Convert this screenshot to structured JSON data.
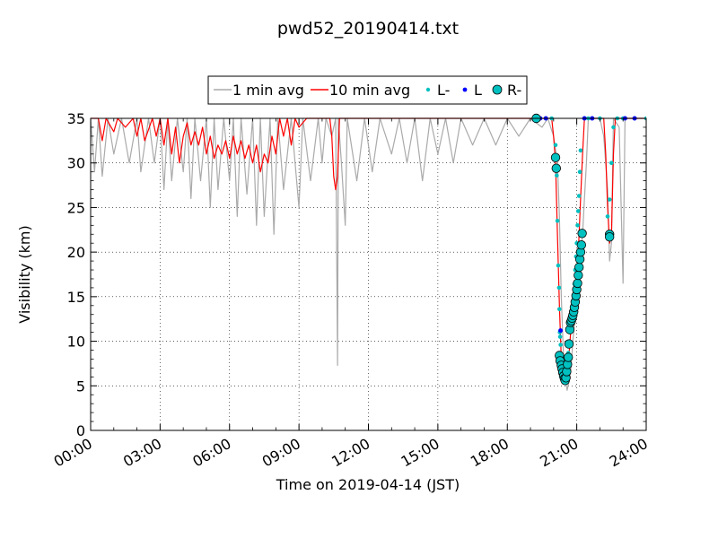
{
  "chart_data": {
    "type": "line",
    "title": "pwd52_20190414.txt",
    "xlabel": "Time on 2019-04-14 (JST)",
    "ylabel": "Visibility (km)",
    "xlim": [
      "00:00",
      "24:00"
    ],
    "ylim": [
      0,
      35
    ],
    "x_ticks": [
      "00:00",
      "03:00",
      "06:00",
      "09:00",
      "12:00",
      "15:00",
      "18:00",
      "21:00",
      "24:00"
    ],
    "y_ticks": [
      0,
      5,
      10,
      15,
      20,
      25,
      30,
      35
    ],
    "grid": true,
    "legend_position": "top-center",
    "legend": [
      "1 min avg",
      "10 min avg",
      "L-",
      "L",
      "R-"
    ],
    "series": [
      {
        "name": "1 min avg",
        "color": "#aaaaaa",
        "points": [
          [
            "00:00",
            35
          ],
          [
            "00:10",
            29
          ],
          [
            "00:20",
            35
          ],
          [
            "00:30",
            28.5
          ],
          [
            "00:45",
            35
          ],
          [
            "01:00",
            31
          ],
          [
            "01:20",
            35
          ],
          [
            "01:40",
            30
          ],
          [
            "02:00",
            35
          ],
          [
            "02:10",
            29
          ],
          [
            "02:30",
            35
          ],
          [
            "02:45",
            30
          ],
          [
            "03:00",
            35
          ],
          [
            "03:10",
            27
          ],
          [
            "03:20",
            35
          ],
          [
            "03:30",
            28
          ],
          [
            "03:45",
            35
          ],
          [
            "04:00",
            29
          ],
          [
            "04:10",
            35
          ],
          [
            "04:20",
            26
          ],
          [
            "04:30",
            35
          ],
          [
            "04:45",
            28
          ],
          [
            "05:00",
            35
          ],
          [
            "05:10",
            25
          ],
          [
            "05:20",
            35
          ],
          [
            "05:30",
            27
          ],
          [
            "05:45",
            35
          ],
          [
            "06:00",
            28
          ],
          [
            "06:10",
            35
          ],
          [
            "06:20",
            24
          ],
          [
            "06:30",
            35
          ],
          [
            "06:45",
            26.5
          ],
          [
            "07:00",
            35
          ],
          [
            "07:10",
            23
          ],
          [
            "07:20",
            35
          ],
          [
            "07:30",
            24
          ],
          [
            "07:45",
            35
          ],
          [
            "07:55",
            22
          ],
          [
            "08:05",
            35
          ],
          [
            "08:20",
            27
          ],
          [
            "08:40",
            35
          ],
          [
            "09:00",
            25
          ],
          [
            "09:10",
            35
          ],
          [
            "09:30",
            28
          ],
          [
            "09:50",
            35
          ],
          [
            "10:00",
            30
          ],
          [
            "10:10",
            35
          ],
          [
            "10:25",
            33
          ],
          [
            "10:35",
            35
          ],
          [
            "10:40",
            7.3
          ],
          [
            "10:42",
            35
          ],
          [
            "10:50",
            30
          ],
          [
            "11:00",
            23
          ],
          [
            "11:05",
            35
          ],
          [
            "11:30",
            28
          ],
          [
            "11:50",
            35
          ],
          [
            "12:10",
            29
          ],
          [
            "12:30",
            35
          ],
          [
            "13:00",
            31
          ],
          [
            "13:20",
            35
          ],
          [
            "13:40",
            30
          ],
          [
            "14:00",
            35
          ],
          [
            "14:20",
            28
          ],
          [
            "14:40",
            35
          ],
          [
            "15:00",
            31
          ],
          [
            "15:20",
            35
          ],
          [
            "15:40",
            30
          ],
          [
            "16:00",
            35
          ],
          [
            "16:30",
            32
          ],
          [
            "17:00",
            35
          ],
          [
            "17:30",
            32
          ],
          [
            "18:00",
            35
          ],
          [
            "18:30",
            33
          ],
          [
            "19:00",
            35
          ],
          [
            "19:30",
            34
          ],
          [
            "19:45",
            35
          ],
          [
            "20:00",
            33
          ],
          [
            "20:10",
            30
          ],
          [
            "20:15",
            24
          ],
          [
            "20:20",
            15
          ],
          [
            "20:25",
            9
          ],
          [
            "20:30",
            6
          ],
          [
            "20:35",
            4.5
          ],
          [
            "20:40",
            5.5
          ],
          [
            "20:45",
            7
          ],
          [
            "20:50",
            10
          ],
          [
            "20:55",
            12.5
          ],
          [
            "21:00",
            14
          ],
          [
            "21:05",
            17
          ],
          [
            "21:10",
            20
          ],
          [
            "21:15",
            22
          ],
          [
            "21:20",
            26
          ],
          [
            "21:25",
            30
          ],
          [
            "21:30",
            35
          ],
          [
            "22:00",
            35
          ],
          [
            "22:10",
            33
          ],
          [
            "22:20",
            27
          ],
          [
            "22:25",
            19
          ],
          [
            "22:30",
            21
          ],
          [
            "22:35",
            35
          ],
          [
            "22:50",
            34
          ],
          [
            "23:00",
            16.5
          ],
          [
            "23:05",
            35
          ],
          [
            "23:30",
            35
          ],
          [
            "24:00",
            35
          ]
        ]
      },
      {
        "name": "10 min avg",
        "color": "#ff0000",
        "points": [
          [
            "00:00",
            35
          ],
          [
            "00:20",
            35
          ],
          [
            "00:30",
            32.5
          ],
          [
            "00:40",
            35
          ],
          [
            "01:00",
            33.5
          ],
          [
            "01:10",
            35
          ],
          [
            "01:30",
            34
          ],
          [
            "01:50",
            35
          ],
          [
            "02:00",
            33
          ],
          [
            "02:10",
            35
          ],
          [
            "02:20",
            32.5
          ],
          [
            "02:40",
            35
          ],
          [
            "02:50",
            33
          ],
          [
            "03:00",
            35
          ],
          [
            "03:10",
            32
          ],
          [
            "03:20",
            35
          ],
          [
            "03:30",
            31
          ],
          [
            "03:40",
            34
          ],
          [
            "03:50",
            30
          ],
          [
            "04:00",
            33
          ],
          [
            "04:10",
            34.5
          ],
          [
            "04:20",
            32
          ],
          [
            "04:30",
            33.5
          ],
          [
            "04:40",
            32
          ],
          [
            "04:50",
            34
          ],
          [
            "05:00",
            31
          ],
          [
            "05:10",
            33
          ],
          [
            "05:20",
            30.5
          ],
          [
            "05:30",
            32
          ],
          [
            "05:40",
            31
          ],
          [
            "05:50",
            32.5
          ],
          [
            "06:00",
            30.5
          ],
          [
            "06:10",
            33
          ],
          [
            "06:20",
            31
          ],
          [
            "06:30",
            32.5
          ],
          [
            "06:40",
            30.5
          ],
          [
            "06:50",
            32
          ],
          [
            "07:00",
            30
          ],
          [
            "07:10",
            32
          ],
          [
            "07:20",
            29
          ],
          [
            "07:30",
            31
          ],
          [
            "07:40",
            30
          ],
          [
            "07:50",
            33
          ],
          [
            "08:00",
            31
          ],
          [
            "08:10",
            35
          ],
          [
            "08:20",
            33
          ],
          [
            "08:30",
            35
          ],
          [
            "08:40",
            32
          ],
          [
            "08:50",
            35
          ],
          [
            "09:00",
            34
          ],
          [
            "09:20",
            35
          ],
          [
            "10:20",
            35
          ],
          [
            "10:25",
            33
          ],
          [
            "10:30",
            28.5
          ],
          [
            "10:35",
            27
          ],
          [
            "10:40",
            28.5
          ],
          [
            "10:45",
            35
          ],
          [
            "19:30",
            35
          ],
          [
            "19:55",
            35
          ],
          [
            "20:00",
            33
          ],
          [
            "20:05",
            30
          ],
          [
            "20:10",
            22
          ],
          [
            "20:15",
            14
          ],
          [
            "20:20",
            8
          ],
          [
            "20:25",
            6
          ],
          [
            "20:30",
            5.2
          ],
          [
            "20:35",
            5.8
          ],
          [
            "20:40",
            8.5
          ],
          [
            "20:45",
            11.5
          ],
          [
            "20:50",
            12.5
          ],
          [
            "20:55",
            13.5
          ],
          [
            "21:00",
            17
          ],
          [
            "21:05",
            21
          ],
          [
            "21:10",
            26
          ],
          [
            "21:15",
            31
          ],
          [
            "21:20",
            35
          ],
          [
            "22:10",
            35
          ],
          [
            "22:15",
            31
          ],
          [
            "22:20",
            25
          ],
          [
            "22:25",
            21
          ],
          [
            "22:30",
            22
          ],
          [
            "22:35",
            31
          ],
          [
            "22:40",
            35
          ],
          [
            "24:00",
            35
          ]
        ]
      },
      {
        "name": "L-",
        "color": "#00c0c0",
        "points": [
          [
            "19:55",
            35
          ],
          [
            "20:05",
            32
          ],
          [
            "20:08",
            28.6
          ],
          [
            "20:10",
            23.5
          ],
          [
            "20:12",
            18.5
          ],
          [
            "20:14",
            16
          ],
          [
            "20:15",
            13.6
          ],
          [
            "20:16",
            11
          ],
          [
            "20:17",
            10.5
          ],
          [
            "20:18",
            9.6
          ],
          [
            "20:20",
            8.4
          ],
          [
            "20:22",
            7.8
          ],
          [
            "20:24",
            7
          ],
          [
            "20:25",
            6.6
          ],
          [
            "20:26",
            6.2
          ],
          [
            "20:28",
            5.9
          ],
          [
            "20:30",
            5.6
          ],
          [
            "20:32",
            6.1
          ],
          [
            "20:34",
            6.8
          ],
          [
            "20:36",
            7.6
          ],
          [
            "20:38",
            8.7
          ],
          [
            "20:40",
            9.8
          ],
          [
            "20:42",
            11
          ],
          [
            "20:44",
            12
          ],
          [
            "20:46",
            12.8
          ],
          [
            "20:48",
            13.6
          ],
          [
            "20:50",
            14.5
          ],
          [
            "20:52",
            15.2
          ],
          [
            "20:54",
            16.4
          ],
          [
            "20:56",
            18
          ],
          [
            "20:58",
            19.5
          ],
          [
            "21:00",
            21
          ],
          [
            "21:02",
            23
          ],
          [
            "21:04",
            24.6
          ],
          [
            "21:06",
            26.3
          ],
          [
            "21:08",
            29
          ],
          [
            "21:10",
            31.4
          ],
          [
            "21:30",
            35
          ],
          [
            "22:00",
            35
          ],
          [
            "22:20",
            24
          ],
          [
            "22:25",
            25.9
          ],
          [
            "22:30",
            30
          ],
          [
            "22:35",
            34
          ],
          [
            "22:45",
            35
          ],
          [
            "23:00",
            35
          ],
          [
            "23:30",
            35
          ],
          [
            "24:00",
            35
          ]
        ]
      },
      {
        "name": "L",
        "color": "#0000ff",
        "points": [
          [
            "19:25",
            35
          ],
          [
            "19:40",
            35
          ],
          [
            "20:18",
            11.2
          ],
          [
            "21:20",
            35
          ],
          [
            "21:40",
            35
          ],
          [
            "23:05",
            35
          ],
          [
            "23:30",
            35
          ]
        ]
      },
      {
        "name": "R-",
        "color": "#00c0c0",
        "points": [
          [
            "19:15",
            35
          ],
          [
            "20:05",
            30.6
          ],
          [
            "20:07",
            29.4
          ],
          [
            "20:15",
            8.4
          ],
          [
            "20:17",
            7.8
          ],
          [
            "20:20",
            7.3
          ],
          [
            "20:22",
            6.9
          ],
          [
            "20:24",
            6.5
          ],
          [
            "20:26",
            6.1
          ],
          [
            "20:28",
            5.8
          ],
          [
            "20:30",
            5.6
          ],
          [
            "20:32",
            5.9
          ],
          [
            "20:34",
            6.6
          ],
          [
            "20:36",
            7.4
          ],
          [
            "20:38",
            8.2
          ],
          [
            "20:40",
            9.7
          ],
          [
            "20:42",
            11.3
          ],
          [
            "20:44",
            12.1
          ],
          [
            "20:46",
            12.3
          ],
          [
            "20:48",
            12.6
          ],
          [
            "20:50",
            12.9
          ],
          [
            "20:52",
            13.3
          ],
          [
            "20:54",
            13.8
          ],
          [
            "20:56",
            14.4
          ],
          [
            "20:58",
            15.1
          ],
          [
            "21:00",
            15.8
          ],
          [
            "21:02",
            16.5
          ],
          [
            "21:04",
            17.4
          ],
          [
            "21:06",
            18.3
          ],
          [
            "21:08",
            19.2
          ],
          [
            "21:10",
            20
          ],
          [
            "21:12",
            20.8
          ],
          [
            "21:14",
            22.1
          ],
          [
            "22:25",
            22
          ],
          [
            "22:25",
            21.7
          ]
        ]
      }
    ]
  }
}
